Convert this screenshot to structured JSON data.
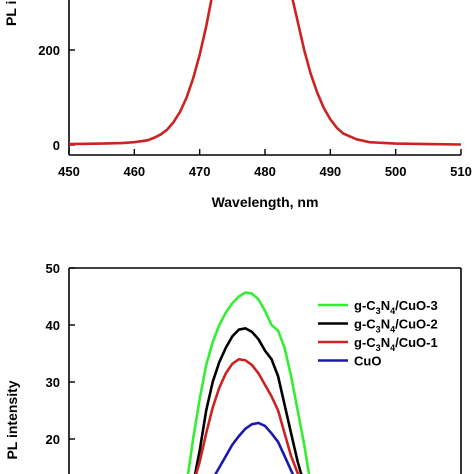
{
  "chart_data": [
    {
      "type": "line",
      "title": "",
      "xlabel": "Wavelength, nm",
      "ylabel": "PL in",
      "xlim": [
        450,
        510
      ],
      "ylim": [
        -20,
        310
      ],
      "x_ticks": [
        "450",
        "460",
        "470",
        "480",
        "490",
        "500",
        "510"
      ],
      "y_ticks": [
        "0",
        "200"
      ],
      "series": [
        {
          "color": "#cc2222",
          "x": [
            450,
            455,
            458,
            460,
            462,
            463,
            464,
            465,
            466,
            467,
            468,
            469,
            470,
            471,
            472,
            478,
            484,
            485,
            486,
            487,
            488,
            489,
            490,
            491,
            492,
            494,
            496,
            500,
            505,
            510
          ],
          "y": [
            2,
            3,
            4,
            6,
            10,
            15,
            22,
            32,
            48,
            70,
            100,
            140,
            190,
            250,
            320,
            320,
            320,
            260,
            200,
            150,
            110,
            78,
            54,
            36,
            24,
            12,
            6,
            3,
            2,
            1
          ]
        }
      ]
    },
    {
      "type": "line",
      "title": "",
      "xlabel": "",
      "ylabel": "PL intensity",
      "xlim": [
        450,
        510
      ],
      "ylim": [
        12,
        50
      ],
      "y_ticks": [
        "20",
        "30",
        "40",
        "50"
      ],
      "legend_position": "top-right",
      "series": [
        {
          "name": "g-C3N4/CuO-3",
          "label_parts": [
            "g-C",
            "3",
            "N",
            "4",
            "/CuO-3"
          ],
          "color": "#33ee33",
          "x": [
            468,
            469,
            470,
            471,
            472,
            473,
            474,
            475,
            476,
            477,
            478,
            479,
            480,
            481,
            482,
            483,
            484,
            485,
            486,
            487
          ],
          "y": [
            12,
            20,
            27,
            33,
            37,
            40,
            42.2,
            43.8,
            45,
            45.7,
            45.5,
            44.5,
            42.5,
            40,
            39,
            36,
            31,
            25,
            19,
            12
          ]
        },
        {
          "name": "g-C3N4/CuO-2",
          "label_parts": [
            "g-C",
            "3",
            "N",
            "4",
            "/CuO-2"
          ],
          "color": "#000000",
          "x": [
            469,
            470,
            471,
            472,
            473,
            474,
            475,
            476,
            477,
            478,
            479,
            480,
            481,
            482,
            483,
            484,
            485,
            486
          ],
          "y": [
            12,
            18,
            25,
            30,
            33.5,
            36,
            38,
            39.2,
            39.4,
            38.8,
            37.5,
            35.5,
            34,
            31,
            26,
            21,
            16,
            12
          ]
        },
        {
          "name": "g-C3N4/CuO-1",
          "label_parts": [
            "g-C",
            "3",
            "N",
            "4",
            "/CuO-1"
          ],
          "color": "#cc2222",
          "x": [
            469,
            470,
            471,
            472,
            473,
            474,
            475,
            476,
            477,
            478,
            479,
            480,
            481,
            482,
            483,
            484,
            485,
            486
          ],
          "y": [
            12,
            16,
            21,
            25.5,
            29,
            31.5,
            33.2,
            34,
            33.8,
            33,
            31.5,
            29.5,
            27.5,
            25,
            21,
            17,
            14,
            12
          ]
        },
        {
          "name": "CuO",
          "label_parts": [
            "CuO"
          ],
          "color": "#1a1aaa",
          "x": [
            472,
            473,
            474,
            475,
            476,
            477,
            478,
            479,
            480,
            481,
            482,
            483,
            484,
            485
          ],
          "y": [
            13,
            15,
            17,
            19,
            20.5,
            21.8,
            22.6,
            22.8,
            22.3,
            21,
            19.5,
            17,
            14.5,
            12
          ]
        }
      ]
    }
  ]
}
